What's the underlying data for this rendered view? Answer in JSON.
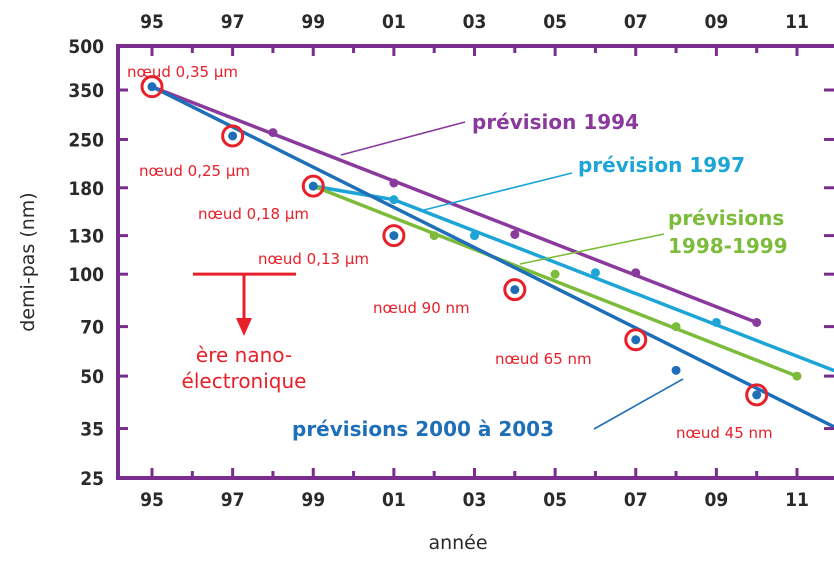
{
  "chart_data": {
    "type": "line",
    "xlabel": "année",
    "ylabel": "demi-pas (nm)",
    "x_ticks": [
      "95",
      "97",
      "99",
      "01",
      "03",
      "05",
      "07",
      "09",
      "11"
    ],
    "y_ticks": [
      500,
      350,
      250,
      180,
      130,
      100,
      70,
      50,
      35,
      25
    ],
    "y_scale": "log",
    "ylim": [
      25,
      500
    ],
    "xlim": [
      1995,
      2011
    ],
    "colors": {
      "frame": "#7b2d8e",
      "prevision_1994": "#8a3a9c",
      "prevision_1997": "#1ea5d8",
      "previsions_1998_1999": "#7dbb3b",
      "previsions_2000_2003": "#1f6fb8",
      "nodes": "#e8202a"
    },
    "series": [
      {
        "key": "p1994",
        "color_key": "prevision_1994",
        "label_lines": [
          "prévision 1994"
        ],
        "line": [
          [
            1995,
            358
          ],
          [
            2010,
            72
          ]
        ],
        "markers": [
          [
            1998,
            262
          ],
          [
            2001,
            186
          ],
          [
            2004,
            131
          ],
          [
            2007,
            101
          ],
          [
            2010,
            72
          ]
        ]
      },
      {
        "key": "p1997",
        "color_key": "prevision_1997",
        "label_lines": [
          "prévision 1997"
        ],
        "line": [
          [
            1999,
            182
          ],
          [
            2001,
            166
          ],
          [
            2011.9,
            52
          ]
        ],
        "markers": [
          [
            2001,
            166
          ],
          [
            2003,
            130
          ],
          [
            2006,
            101
          ],
          [
            2009,
            72
          ]
        ]
      },
      {
        "key": "p1998",
        "color_key": "previsions_1998_1999",
        "label_lines": [
          "prévisions",
          "1998-1999"
        ],
        "line": [
          [
            1999,
            182
          ],
          [
            2011,
            50
          ]
        ],
        "markers": [
          [
            2002,
            130
          ],
          [
            2005,
            100
          ],
          [
            2008,
            70
          ],
          [
            2011,
            50
          ]
        ]
      },
      {
        "key": "p2000",
        "color_key": "previsions_2000_2003",
        "label_lines": [
          "prévisions 2000 à 2003"
        ],
        "line": [
          [
            1995,
            358
          ],
          [
            2012,
            35
          ]
        ],
        "markers": [
          [
            2008,
            52
          ]
        ]
      }
    ],
    "nodes": [
      {
        "x": 1995,
        "y": 358,
        "label": "nœud 0,35 µm"
      },
      {
        "x": 1997,
        "y": 256,
        "label": "nœud 0,25 µm"
      },
      {
        "x": 1999,
        "y": 182,
        "label": "nœud 0,18 µm"
      },
      {
        "x": 2001,
        "y": 130,
        "label": "nœud 0,13 µm"
      },
      {
        "x": 2004,
        "y": 90,
        "label": "nœud 90 nm"
      },
      {
        "x": 2007,
        "y": 64,
        "label": "nœud 65 nm"
      },
      {
        "x": 2010,
        "y": 44,
        "label": "nœud 45 nm"
      }
    ],
    "annotation": {
      "label_lines": [
        "ère nano-",
        "électronique"
      ],
      "threshold_y": 100
    }
  }
}
